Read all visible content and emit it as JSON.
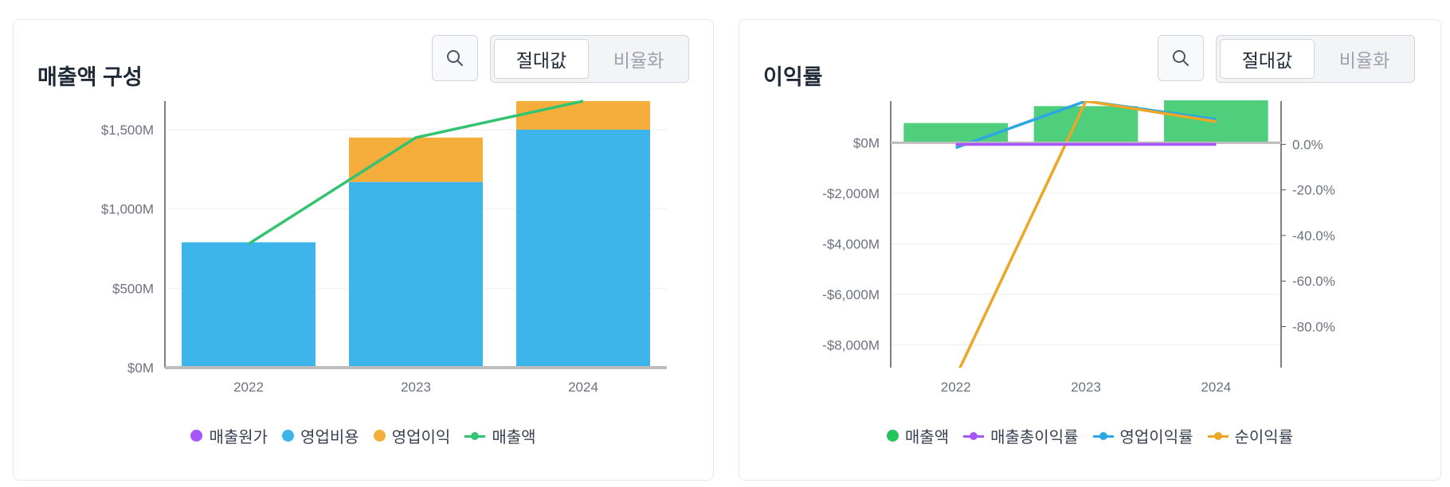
{
  "colors": {
    "cost_of_sales": "#a855f7",
    "operating_expense": "#3db4ea",
    "operating_income": "#f5ae3b",
    "revenue_line": "#34c471",
    "revenue_bar": "#4fce7c",
    "gross_margin": "#a855f7",
    "operating_margin": "#2ba7e6",
    "net_margin": "#eda626"
  },
  "left_card": {
    "title": "매출액 구성",
    "search_icon": "search-icon",
    "toggle": {
      "absolute": "절대값",
      "normalized": "비율화",
      "selected": "absolute"
    },
    "legend": [
      "매출원가",
      "영업비용",
      "영업이익",
      "매출액"
    ]
  },
  "right_card": {
    "title": "이익률",
    "search_icon": "search-icon",
    "toggle": {
      "absolute": "절대값",
      "normalized": "비율화",
      "selected": "absolute"
    },
    "legend": [
      "매출액",
      "매출총이익률",
      "영업이익률",
      "순이익률"
    ]
  },
  "chart_data": [
    {
      "type": "bar",
      "stacked": true,
      "categories": [
        "2022",
        "2023",
        "2024"
      ],
      "yticks": [
        "$0M",
        "$500M",
        "$1,000M",
        "$1,500M"
      ],
      "ylim": [
        0,
        1680
      ],
      "grid": true,
      "legend_position": "bottom",
      "series": [
        {
          "name": "매출원가",
          "kind": "bar",
          "values": [
            -10,
            0,
            0
          ]
        },
        {
          "name": "영업비용",
          "kind": "bar",
          "values": [
            790,
            1170,
            1500
          ]
        },
        {
          "name": "영업이익",
          "kind": "bar",
          "values": [
            0,
            280,
            180
          ]
        },
        {
          "name": "매출액",
          "kind": "line",
          "values": [
            780,
            1450,
            1680
          ]
        }
      ]
    },
    {
      "type": "bar",
      "categories": [
        "2022",
        "2023",
        "2024"
      ],
      "yticks_left": [
        "$0M",
        "-$2,000M",
        "-$4,000M",
        "-$6,000M",
        "-$8,000M"
      ],
      "yticks_right": [
        "0.0%",
        "-20.0%",
        "-40.0%",
        "-60.0%",
        "-80.0%"
      ],
      "ylim_left": [
        -8900,
        1650
      ],
      "ylim_right": [
        -98,
        19
      ],
      "grid": true,
      "legend_position": "bottom",
      "series": [
        {
          "name": "매출액",
          "kind": "bar",
          "axis": "left",
          "values": [
            780,
            1450,
            1680
          ]
        },
        {
          "name": "매출총이익률",
          "kind": "line",
          "axis": "right",
          "values": [
            0,
            0,
            0
          ]
        },
        {
          "name": "영업이익률",
          "kind": "line",
          "axis": "right",
          "values": [
            -1.5,
            19,
            11
          ]
        },
        {
          "name": "순이익률",
          "kind": "line",
          "axis": "right",
          "values": [
            -102,
            19,
            10
          ]
        }
      ]
    }
  ]
}
